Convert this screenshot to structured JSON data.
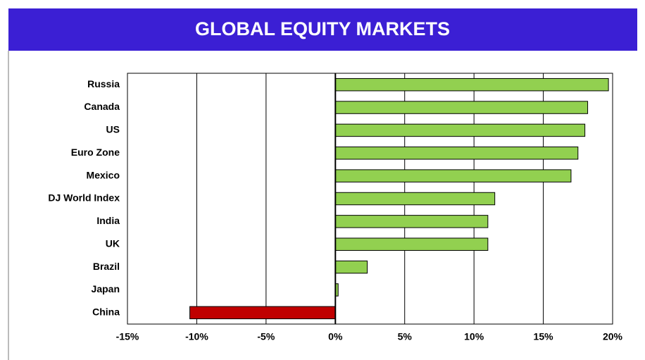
{
  "chart_data": {
    "type": "bar",
    "orientation": "horizontal",
    "title": "GLOBAL EQUITY MARKETS",
    "categories": [
      "Russia",
      "Canada",
      "US",
      "Euro Zone",
      "Mexico",
      "DJ World Index",
      "India",
      "UK",
      "Brazil",
      "Japan",
      "China"
    ],
    "values": [
      19.7,
      18.2,
      18.0,
      17.5,
      17.0,
      11.5,
      11.0,
      11.0,
      2.3,
      0.2,
      -10.5
    ],
    "colors": [
      "#92d050",
      "#92d050",
      "#92d050",
      "#92d050",
      "#92d050",
      "#92d050",
      "#92d050",
      "#92d050",
      "#92d050",
      "#92d050",
      "#c00000"
    ],
    "xlim": [
      -15,
      20
    ],
    "xticks": [
      {
        "value": -15,
        "label": "-15%"
      },
      {
        "value": -10,
        "label": "-10%"
      },
      {
        "value": -5,
        "label": "-5%"
      },
      {
        "value": 0,
        "label": "0%"
      },
      {
        "value": 5,
        "label": "5%"
      },
      {
        "value": 10,
        "label": "10%"
      },
      {
        "value": 15,
        "label": "15%"
      },
      {
        "value": 20,
        "label": "20%"
      }
    ],
    "grid": true,
    "title_color": "#3b1fd4"
  }
}
